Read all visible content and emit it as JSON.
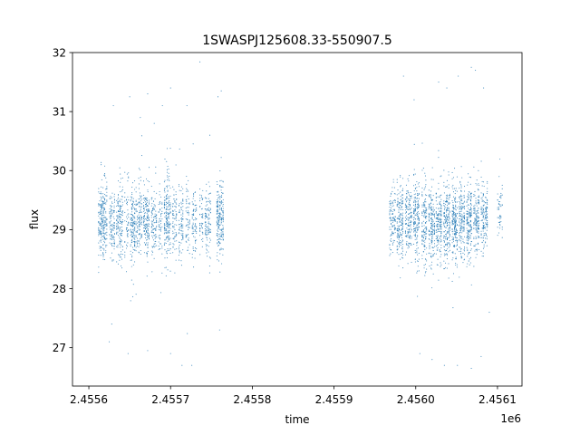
{
  "chart_data": {
    "type": "scatter",
    "title": "1SWASPJ125608.33-550907.5",
    "xlabel": "time",
    "ylabel": "flux",
    "x_offset_label": "1e6",
    "xlim": [
      2455580,
      2456130
    ],
    "ylim": [
      26.35,
      32.0
    ],
    "xticks": [
      2455600,
      2455700,
      2455800,
      2455900,
      2456000,
      2456100
    ],
    "xtick_labels": [
      "2.4556",
      "2.4557",
      "2.4558",
      "2.4559",
      "2.4560",
      "2.4561"
    ],
    "yticks": [
      27,
      28,
      29,
      30,
      31,
      32
    ],
    "ytick_labels": [
      "27",
      "28",
      "29",
      "30",
      "31",
      "32"
    ],
    "grid": false,
    "marker_color": "#1f77b4",
    "series": [
      {
        "segments": [
          {
            "x_start": 2455612,
            "x_end": 2455622,
            "y_center": 29.2,
            "y_spread": 0.55,
            "density": 0.8
          },
          {
            "x_start": 2455625,
            "x_end": 2455632,
            "y_center": 29.1,
            "y_spread": 0.55,
            "density": 0.5
          },
          {
            "x_start": 2455634,
            "x_end": 2455642,
            "y_center": 29.2,
            "y_spread": 0.55,
            "density": 0.6
          },
          {
            "x_start": 2455644,
            "x_end": 2455649,
            "y_center": 29.1,
            "y_spread": 0.6,
            "density": 0.4
          },
          {
            "x_start": 2455651,
            "x_end": 2455658,
            "y_center": 29.1,
            "y_spread": 0.6,
            "density": 0.7
          },
          {
            "x_start": 2455659,
            "x_end": 2455665,
            "y_center": 29.2,
            "y_spread": 0.55,
            "density": 0.6
          },
          {
            "x_start": 2455667,
            "x_end": 2455674,
            "y_center": 29.15,
            "y_spread": 0.6,
            "density": 0.7
          },
          {
            "x_start": 2455676,
            "x_end": 2455683,
            "y_center": 29.1,
            "y_spread": 0.55,
            "density": 0.45
          },
          {
            "x_start": 2455685,
            "x_end": 2455690,
            "y_center": 29.1,
            "y_spread": 0.6,
            "density": 0.4
          },
          {
            "x_start": 2455692,
            "x_end": 2455700,
            "y_center": 29.2,
            "y_spread": 0.6,
            "density": 0.8
          },
          {
            "x_start": 2455702,
            "x_end": 2455708,
            "y_center": 29.15,
            "y_spread": 0.55,
            "density": 0.45
          },
          {
            "x_start": 2455710,
            "x_end": 2455716,
            "y_center": 29.1,
            "y_spread": 0.55,
            "density": 0.5
          },
          {
            "x_start": 2455718,
            "x_end": 2455724,
            "y_center": 29.2,
            "y_spread": 0.55,
            "density": 0.35
          },
          {
            "x_start": 2455726,
            "x_end": 2455732,
            "y_center": 29.15,
            "y_spread": 0.55,
            "density": 0.45
          },
          {
            "x_start": 2455735,
            "x_end": 2455740,
            "y_center": 29.2,
            "y_spread": 0.55,
            "density": 0.35
          },
          {
            "x_start": 2455742,
            "x_end": 2455749,
            "y_center": 29.15,
            "y_spread": 0.55,
            "density": 0.5
          },
          {
            "x_start": 2455756,
            "x_end": 2455765,
            "y_center": 29.2,
            "y_spread": 0.6,
            "density": 0.8
          },
          {
            "x_start": 2455968,
            "x_end": 2455975,
            "y_center": 29.2,
            "y_spread": 0.55,
            "density": 0.5
          },
          {
            "x_start": 2455977,
            "x_end": 2455985,
            "y_center": 29.1,
            "y_spread": 0.6,
            "density": 0.7
          },
          {
            "x_start": 2455987,
            "x_end": 2455995,
            "y_center": 29.2,
            "y_spread": 0.55,
            "density": 0.6
          },
          {
            "x_start": 2455997,
            "x_end": 2456004,
            "y_center": 29.15,
            "y_spread": 0.6,
            "density": 0.8
          },
          {
            "x_start": 2456007,
            "x_end": 2456014,
            "y_center": 29.1,
            "y_spread": 0.65,
            "density": 0.6
          },
          {
            "x_start": 2456016,
            "x_end": 2456023,
            "y_center": 29.1,
            "y_spread": 0.65,
            "density": 0.8
          },
          {
            "x_start": 2456025,
            "x_end": 2456032,
            "y_center": 29.1,
            "y_spread": 0.6,
            "density": 0.7
          },
          {
            "x_start": 2456034,
            "x_end": 2456042,
            "y_center": 29.1,
            "y_spread": 0.6,
            "density": 0.8
          },
          {
            "x_start": 2456044,
            "x_end": 2456051,
            "y_center": 29.1,
            "y_spread": 0.6,
            "density": 0.85
          },
          {
            "x_start": 2456053,
            "x_end": 2456060,
            "y_center": 29.15,
            "y_spread": 0.6,
            "density": 0.75
          },
          {
            "x_start": 2456062,
            "x_end": 2456069,
            "y_center": 29.1,
            "y_spread": 0.6,
            "density": 0.8
          },
          {
            "x_start": 2456071,
            "x_end": 2456078,
            "y_center": 29.2,
            "y_spread": 0.55,
            "density": 0.65
          },
          {
            "x_start": 2456080,
            "x_end": 2456088,
            "y_center": 29.2,
            "y_spread": 0.55,
            "density": 0.6
          },
          {
            "x_start": 2456100,
            "x_end": 2456106,
            "y_center": 29.3,
            "y_spread": 0.5,
            "density": 0.3
          }
        ],
        "outliers": [
          [
            2455630,
            31.1
          ],
          [
            2455650,
            31.25
          ],
          [
            2455663,
            30.9
          ],
          [
            2455672,
            31.3
          ],
          [
            2455680,
            30.8
          ],
          [
            2455690,
            31.1
          ],
          [
            2455700,
            31.4
          ],
          [
            2455720,
            31.1
          ],
          [
            2455748,
            30.6
          ],
          [
            2455758,
            31.25
          ],
          [
            2455762,
            31.35
          ],
          [
            2455625,
            27.1
          ],
          [
            2455628,
            27.4
          ],
          [
            2455648,
            26.9
          ],
          [
            2455672,
            26.95
          ],
          [
            2455700,
            26.9
          ],
          [
            2455714,
            26.7
          ],
          [
            2455726,
            26.7
          ],
          [
            2455760,
            27.3
          ],
          [
            2455985,
            31.6
          ],
          [
            2455998,
            31.2
          ],
          [
            2456028,
            31.5
          ],
          [
            2456038,
            31.4
          ],
          [
            2456052,
            31.6
          ],
          [
            2456068,
            31.75
          ],
          [
            2456073,
            31.7
          ],
          [
            2456083,
            31.4
          ],
          [
            2456020,
            26.8
          ],
          [
            2456035,
            26.7
          ],
          [
            2456051,
            26.7
          ],
          [
            2456068,
            26.65
          ],
          [
            2456080,
            26.85
          ],
          [
            2456005,
            26.9
          ],
          [
            2456090,
            27.6
          ],
          [
            2456102,
            29.9
          ]
        ]
      }
    ]
  }
}
